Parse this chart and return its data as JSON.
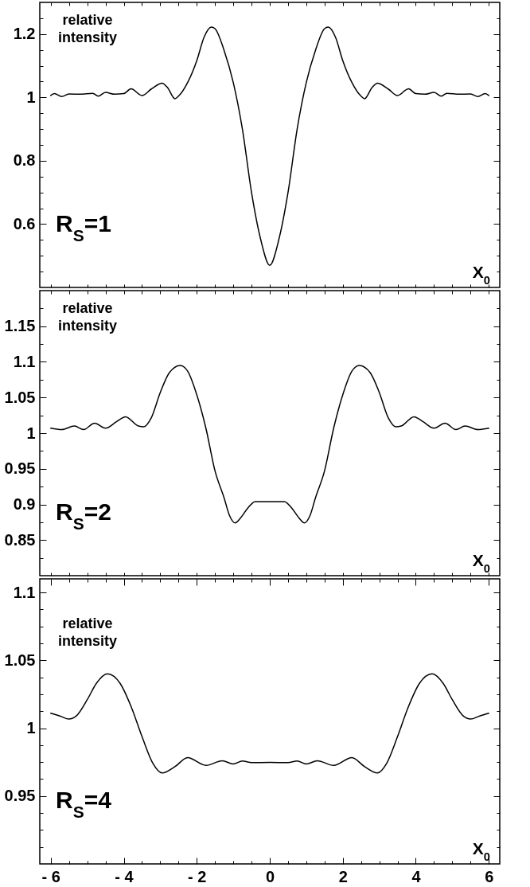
{
  "chart_data": [
    {
      "type": "line",
      "xlabel": "X$_{0}$",
      "ylabel": "relative intensity",
      "annotations": [
        "R$_{S}$=1"
      ],
      "color": "#000000",
      "tick_labels": "y",
      "x": [
        -6,
        -5.9,
        -5.7,
        -5.5,
        -5.2,
        -4.85,
        -4.7,
        -4.5,
        -4.25,
        -4,
        -3.8,
        -3.5,
        -3.25,
        -2.95,
        -2.8,
        -2.6,
        -2.5,
        -2.25,
        -2,
        -1.8,
        -1.6,
        -1.5,
        -1.25,
        -1,
        -0.75,
        -0.5,
        -0.25,
        0,
        0.25,
        0.5,
        0.75,
        1,
        1.25,
        1.5,
        1.6,
        1.8,
        2,
        2.25,
        2.5,
        2.6,
        2.8,
        2.95,
        3.25,
        3.5,
        3.8,
        4,
        4.25,
        4.5,
        4.7,
        4.85,
        5.2,
        5.5,
        5.7,
        5.9,
        6
      ],
      "values": [
        1.006,
        1.012,
        1.003,
        1.011,
        1.01,
        1.013,
        1.004,
        1.016,
        1.01,
        1.012,
        1.027,
        1.006,
        1.026,
        1.045,
        1.031,
        0.996,
        1.004,
        1.047,
        1.116,
        1.19,
        1.222,
        1.217,
        1.148,
        1.047,
        0.9,
        0.7,
        0.552,
        0.47,
        0.552,
        0.7,
        0.9,
        1.047,
        1.148,
        1.217,
        1.222,
        1.19,
        1.116,
        1.047,
        1.004,
        0.996,
        1.031,
        1.045,
        1.026,
        1.006,
        1.027,
        1.012,
        1.01,
        1.016,
        1.004,
        1.013,
        1.01,
        1.011,
        1.003,
        1.012,
        1.006
      ],
      "xlim": [
        -6.3,
        6.3
      ],
      "ylim": [
        0.4,
        1.3
      ],
      "xticks": [
        {
          "value": -6,
          "label": null
        },
        {
          "value": -5.5,
          "label": null
        },
        {
          "value": -5,
          "label": null
        },
        {
          "value": -4.5,
          "label": null
        },
        {
          "value": -4,
          "label": null
        },
        {
          "value": -3.5,
          "label": null
        },
        {
          "value": -3,
          "label": null
        },
        {
          "value": -2.5,
          "label": null
        },
        {
          "value": -2,
          "label": null
        },
        {
          "value": -1.5,
          "label": null
        },
        {
          "value": -1,
          "label": null
        },
        {
          "value": -0.5,
          "label": null
        },
        {
          "value": 0,
          "label": null
        },
        {
          "value": 0.5,
          "label": null
        },
        {
          "value": 1,
          "label": null
        },
        {
          "value": 1.5,
          "label": null
        },
        {
          "value": 2,
          "label": null
        },
        {
          "value": 2.5,
          "label": null
        },
        {
          "value": 3,
          "label": null
        },
        {
          "value": 3.5,
          "label": null
        },
        {
          "value": 4,
          "label": null
        },
        {
          "value": 4.5,
          "label": null
        },
        {
          "value": 5,
          "label": null
        },
        {
          "value": 5.5,
          "label": null
        },
        {
          "value": 6,
          "label": null
        }
      ],
      "yticks": [
        {
          "value": 0.45,
          "label": null
        },
        {
          "value": 0.5,
          "label": null
        },
        {
          "value": 0.55,
          "label": null
        },
        0.6,
        {
          "value": 0.65,
          "label": null
        },
        {
          "value": 0.7,
          "label": null
        },
        {
          "value": 0.75,
          "label": null
        },
        0.8,
        {
          "value": 0.85,
          "label": null
        },
        {
          "value": 0.9,
          "label": null
        },
        {
          "value": 0.95,
          "label": null
        },
        1,
        {
          "value": 1.05,
          "label": null
        },
        {
          "value": 1.1,
          "label": null
        },
        {
          "value": 1.15,
          "label": null
        },
        1.2,
        {
          "value": 1.25,
          "label": null
        }
      ]
    },
    {
      "type": "line",
      "xlabel": "X$_{0}$",
      "ylabel": "relative intensity",
      "annotations": [
        "R$_{S}$=2"
      ],
      "color": "#000000",
      "tick_labels": "y",
      "x": [
        -6,
        -5.7,
        -5.35,
        -5.1,
        -4.8,
        -4.5,
        -4.2,
        -3.95,
        -3.6,
        -3.45,
        -3.25,
        -3,
        -2.75,
        -2.45,
        -2.25,
        -2,
        -1.75,
        -1.5,
        -1.25,
        -1.1,
        -0.95,
        -0.8,
        -0.6,
        -0.4,
        0,
        0.4,
        0.6,
        0.8,
        0.95,
        1.1,
        1.25,
        1.5,
        1.75,
        2,
        2.25,
        2.45,
        2.75,
        3,
        3.25,
        3.45,
        3.6,
        3.95,
        4.2,
        4.5,
        4.8,
        5.1,
        5.35,
        5.7,
        6
      ],
      "values": [
        1.007,
        1.005,
        1.01,
        1.005,
        1.014,
        1.007,
        1.016,
        1.023,
        1.01,
        1.009,
        1.021,
        1.057,
        1.085,
        1.095,
        1.087,
        1.054,
        1.007,
        0.947,
        0.909,
        0.884,
        0.874,
        0.881,
        0.895,
        0.904,
        0.904,
        0.904,
        0.895,
        0.881,
        0.874,
        0.884,
        0.909,
        0.947,
        1.007,
        1.054,
        1.087,
        1.095,
        1.085,
        1.057,
        1.021,
        1.009,
        1.01,
        1.023,
        1.016,
        1.007,
        1.014,
        1.005,
        1.01,
        1.005,
        1.007
      ],
      "xlim": [
        -6.3,
        6.3
      ],
      "ylim": [
        0.8,
        1.2
      ],
      "xticks": [
        {
          "value": -6,
          "label": null
        },
        {
          "value": -5.5,
          "label": null
        },
        {
          "value": -5,
          "label": null
        },
        {
          "value": -4.5,
          "label": null
        },
        {
          "value": -4,
          "label": null
        },
        {
          "value": -3.5,
          "label": null
        },
        {
          "value": -3,
          "label": null
        },
        {
          "value": -2.5,
          "label": null
        },
        {
          "value": -2,
          "label": null
        },
        {
          "value": -1.5,
          "label": null
        },
        {
          "value": -1,
          "label": null
        },
        {
          "value": -0.5,
          "label": null
        },
        {
          "value": 0,
          "label": null
        },
        {
          "value": 0.5,
          "label": null
        },
        {
          "value": 1,
          "label": null
        },
        {
          "value": 1.5,
          "label": null
        },
        {
          "value": 2,
          "label": null
        },
        {
          "value": 2.5,
          "label": null
        },
        {
          "value": 3,
          "label": null
        },
        {
          "value": 3.5,
          "label": null
        },
        {
          "value": 4,
          "label": null
        },
        {
          "value": 4.5,
          "label": null
        },
        {
          "value": 5,
          "label": null
        },
        {
          "value": 5.5,
          "label": null
        },
        {
          "value": 6,
          "label": null
        }
      ],
      "yticks": [
        {
          "value": 0.825,
          "label": null
        },
        0.85,
        {
          "value": 0.875,
          "label": null
        },
        0.9,
        {
          "value": 0.925,
          "label": null
        },
        0.95,
        {
          "value": 0.975,
          "label": null
        },
        1,
        {
          "value": 1.025,
          "label": null
        },
        1.05,
        {
          "value": 1.075,
          "label": null
        },
        1.1,
        {
          "value": 1.125,
          "label": null
        },
        1.15,
        {
          "value": 1.175,
          "label": null
        }
      ]
    },
    {
      "type": "line",
      "xlabel": "X$_{0}$",
      "ylabel": "relative intensity",
      "annotations": [
        "R$_{S}$=4"
      ],
      "color": "#000000",
      "x": [
        -6,
        -5.75,
        -5.5,
        -5.3,
        -5,
        -4.75,
        -4.45,
        -4.1,
        -3.8,
        -3.5,
        -3.2,
        -2.95,
        -2.6,
        -2.25,
        -1.75,
        -1.3,
        -1,
        -0.75,
        -0.5,
        0,
        0.5,
        0.75,
        1,
        1.3,
        1.75,
        2.25,
        2.6,
        2.95,
        3.2,
        3.5,
        3.8,
        4.1,
        4.45,
        4.75,
        5,
        5.3,
        5.5,
        5.75,
        6
      ],
      "values": [
        1.011,
        1.009,
        1.0067,
        1.009,
        1.021,
        1.033,
        1.04,
        1.033,
        1.016,
        0.9938,
        0.974,
        0.967,
        0.9716,
        0.9783,
        0.9726,
        0.976,
        0.9736,
        0.9758,
        0.9746,
        0.9748,
        0.9746,
        0.9758,
        0.9736,
        0.976,
        0.9726,
        0.9783,
        0.9716,
        0.967,
        0.974,
        0.9938,
        1.016,
        1.033,
        1.04,
        1.033,
        1.021,
        1.009,
        1.0067,
        1.009,
        1.011
      ],
      "xlim": [
        -6.3,
        6.3
      ],
      "ylim": [
        0.9,
        1.11
      ],
      "xticks": [
        {
          "value": -6,
          "label": "- 6"
        },
        {
          "value": -5.5,
          "label": null
        },
        {
          "value": -5,
          "label": null
        },
        {
          "value": -4.5,
          "label": null
        },
        {
          "value": -4,
          "label": "- 4"
        },
        {
          "value": -3.5,
          "label": null
        },
        {
          "value": -3,
          "label": null
        },
        {
          "value": -2.5,
          "label": null
        },
        {
          "value": -2,
          "label": "- 2"
        },
        {
          "value": -1.5,
          "label": null
        },
        {
          "value": -1,
          "label": null
        },
        {
          "value": -0.5,
          "label": null
        },
        0,
        {
          "value": 0.5,
          "label": null
        },
        {
          "value": 1,
          "label": null
        },
        {
          "value": 1.5,
          "label": null
        },
        2,
        {
          "value": 2.5,
          "label": null
        },
        {
          "value": 3,
          "label": null
        },
        {
          "value": 3.5,
          "label": null
        },
        4,
        {
          "value": 4.5,
          "label": null
        },
        {
          "value": 5,
          "label": null
        },
        {
          "value": 5.5,
          "label": null
        },
        6
      ],
      "yticks": [
        {
          "value": 0.9125,
          "label": null
        },
        {
          "value": 0.925,
          "label": null
        },
        {
          "value": 0.9375,
          "label": null
        },
        0.95,
        {
          "value": 0.9625,
          "label": null
        },
        {
          "value": 0.975,
          "label": null
        },
        {
          "value": 0.9875,
          "label": null
        },
        1,
        {
          "value": 1.0125,
          "label": null
        },
        {
          "value": 1.025,
          "label": null
        },
        {
          "value": 1.0375,
          "label": null
        },
        1.05,
        {
          "value": 1.0625,
          "label": null
        },
        {
          "value": 1.075,
          "label": null
        },
        {
          "value": 1.0875,
          "label": null
        },
        1.1
      ]
    }
  ]
}
